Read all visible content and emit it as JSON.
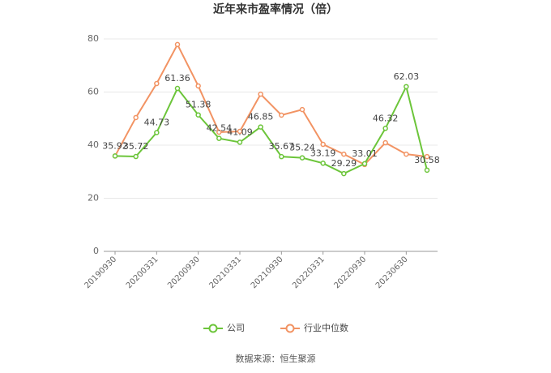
{
  "chart_data": {
    "type": "line",
    "title": "近年来市盈率情况（倍）",
    "categories": [
      "20190930",
      null,
      "20200331",
      null,
      "20200930",
      null,
      "20210331",
      null,
      "20210930",
      null,
      "20220331",
      null,
      "20220930",
      null,
      "20230630",
      null
    ],
    "series": [
      {
        "name": "公司",
        "color": "#6cc53a",
        "data_labels": true,
        "values": [
          35.92,
          35.72,
          44.73,
          61.36,
          51.38,
          42.54,
          41.09,
          46.85,
          35.67,
          35.24,
          33.19,
          29.29,
          33.01,
          46.32,
          62.03,
          30.58
        ]
      },
      {
        "name": "行业中位数",
        "color": "#f29363",
        "values": [
          35.9,
          50.4,
          63.2,
          77.9,
          62.3,
          44.9,
          45.2,
          59.2,
          51.3,
          53.4,
          40.3,
          36.6,
          32.7,
          40.9,
          36.6,
          35.7
        ]
      }
    ],
    "ylim": [
      0,
      80
    ],
    "yticks": [
      0,
      20,
      40,
      60,
      80
    ],
    "grid": true,
    "legend": "bottom",
    "source": "数据来源：恒生聚源"
  }
}
